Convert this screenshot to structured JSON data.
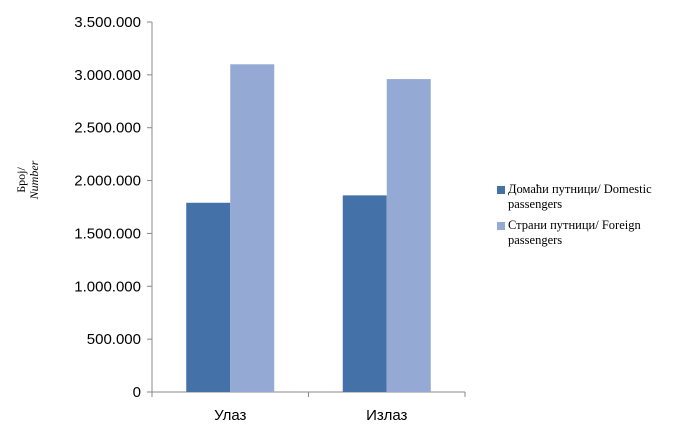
{
  "chart_data": {
    "type": "bar",
    "categories": [
      "Улаз",
      "Излаз"
    ],
    "series": [
      {
        "name": "Домаћи путници/ Domestic passengers",
        "values": [
          1790000,
          1860000
        ],
        "color": "#4472a8"
      },
      {
        "name": "Страни путници/ Foreign passengers",
        "values": [
          3100000,
          2960000
        ],
        "color": "#94aad4"
      }
    ],
    "ylabel": "Број/",
    "ylabel_italic": "Number",
    "ylim": [
      0,
      3500000
    ],
    "yticks": [
      0,
      500000,
      1000000,
      1500000,
      2000000,
      2500000,
      3000000,
      3500000
    ],
    "ytick_labels": [
      "0",
      "500.000",
      "1.000.000",
      "1.500.000",
      "2.000.000",
      "2.500.000",
      "3.000.000",
      "3.500.000"
    ],
    "legend_position": "right",
    "grid": false
  }
}
